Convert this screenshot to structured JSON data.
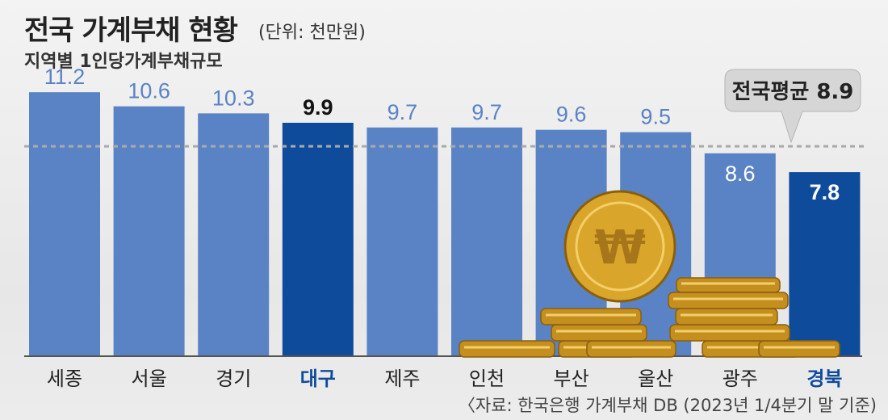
{
  "chart_data": {
    "type": "bar",
    "title": "전국 가계부채 현황",
    "unit": "(단위: 천만원)",
    "subtitle": "지역별 1인당가계부채규모",
    "categories": [
      "세종",
      "서울",
      "경기",
      "대구",
      "제주",
      "인천",
      "부산",
      "울산",
      "광주",
      "경북"
    ],
    "values": [
      11.2,
      10.6,
      10.3,
      9.9,
      9.7,
      9.7,
      9.6,
      9.5,
      8.6,
      7.8
    ],
    "value_labels": [
      "11.2",
      "10.6",
      "10.3",
      "9.9",
      "9.7",
      "9.7",
      "9.6",
      "9.5",
      "8.6",
      "7.8"
    ],
    "highlighted": [
      "대구",
      "경북"
    ],
    "average": {
      "value": 8.9,
      "label": "전국평균 8.9"
    },
    "ylim": [
      0,
      12.1
    ],
    "colors": {
      "bar": "#5a83c5",
      "highlight": "#0f4b9b",
      "avg_line": "#aaaaaa",
      "coin": "#d9a52b"
    },
    "source": "〈자료: 한국은행 가계부채 DB (2023년 1/4분기 말 기준)"
  },
  "decor": {
    "coin_icon": "won-coin-icon",
    "coin_symbol": "₩"
  }
}
